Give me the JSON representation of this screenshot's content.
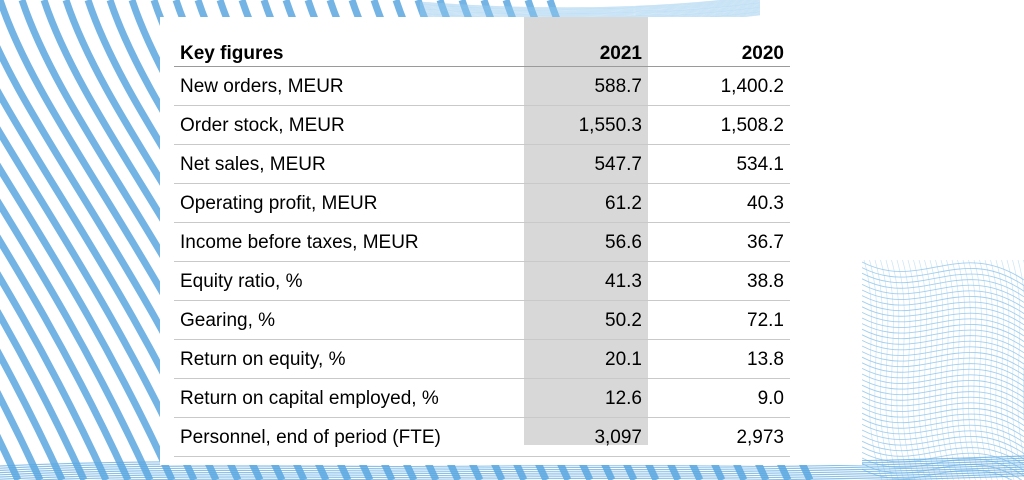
{
  "table": {
    "header": {
      "title": "Key figures",
      "col_2021": "2021",
      "col_2020": "2020"
    },
    "rows": [
      {
        "label": "New orders, MEUR",
        "v2021": "588.7",
        "v2020": "1,400.2"
      },
      {
        "label": "Order stock, MEUR",
        "v2021": "1,550.3",
        "v2020": "1,508.2"
      },
      {
        "label": "Net sales, MEUR",
        "v2021": "547.7",
        "v2020": "534.1"
      },
      {
        "label": "Operating profit, MEUR",
        "v2021": "61.2",
        "v2020": "40.3"
      },
      {
        "label": "Income before taxes, MEUR",
        "v2021": "56.6",
        "v2020": "36.7"
      },
      {
        "label": "Equity ratio, %",
        "v2021": "41.3",
        "v2020": "38.8"
      },
      {
        "label": "Gearing, %",
        "v2021": "50.2",
        "v2020": "72.1"
      },
      {
        "label": "Return on equity, %",
        "v2021": "20.1",
        "v2020": "13.8"
      },
      {
        "label": "Return on capital employed, %",
        "v2021": "12.6",
        "v2020": "9.0"
      },
      {
        "label": "Personnel, end of period (FTE)",
        "v2021": "3,097",
        "v2020": "2,973"
      }
    ]
  },
  "colors": {
    "wave_blue": "#5aa7e0",
    "wave_light_blue": "#8fc6ec",
    "highlight_gray": "#d8d8d8",
    "row_divider": "#c9c9c9"
  }
}
